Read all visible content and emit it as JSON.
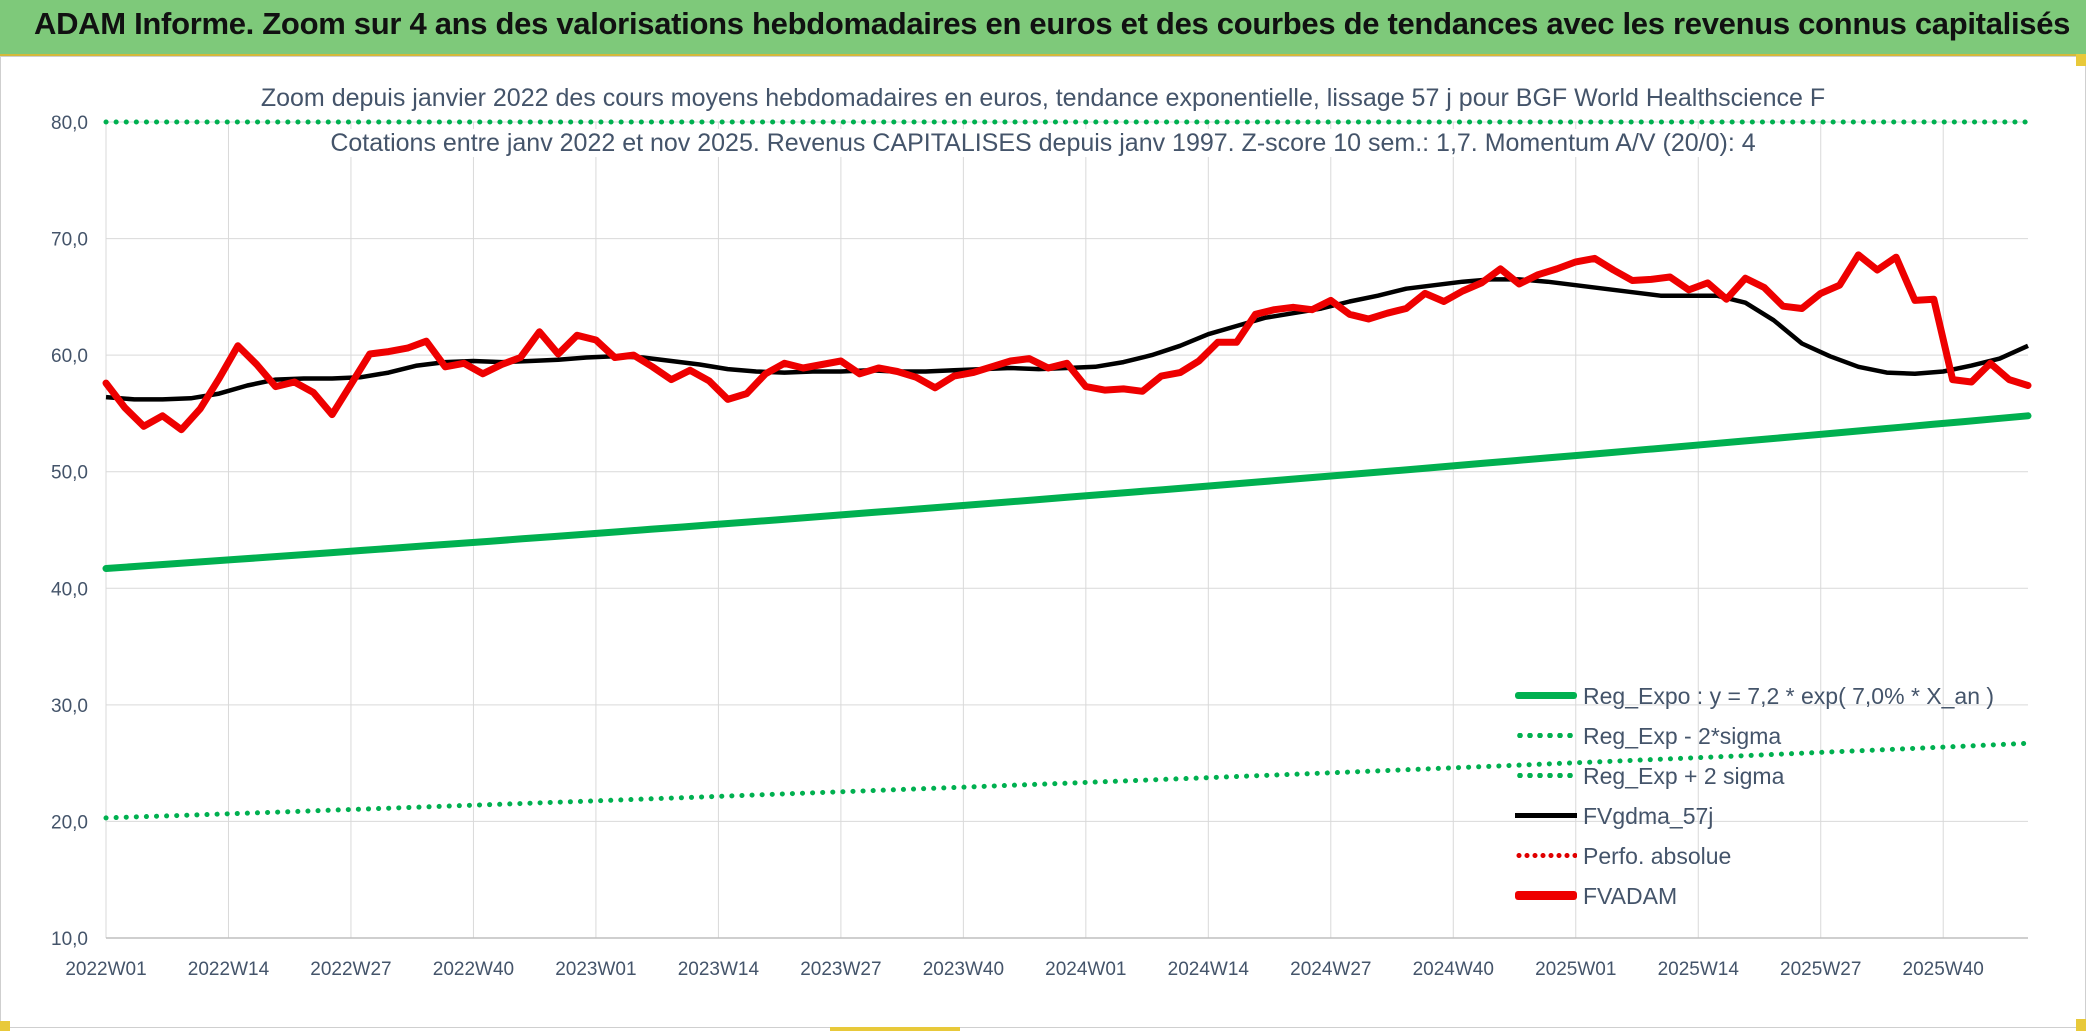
{
  "header": {
    "banner_title": "ADAM Informe. Zoom sur 4 ans des valorisations hebdomadaires en euros et des courbes de tendances avec les revenus connus capitalisés"
  },
  "colors": {
    "banner": "#7ec97a",
    "reg_expo": "#00b050",
    "fvgdma": "#000000",
    "fvadam": "#ee0000",
    "perfo": "#e00000",
    "grid": "#d9d9d9",
    "text": "#44546a"
  },
  "chart_data": {
    "type": "line",
    "title": "Zoom depuis janvier 2022 des cours moyens hebdomadaires en euros, tendance exponentielle, lissage 57 j pour BGF World Healthscience F",
    "subtitle": "Cotations entre janv 2022 et nov 2025. Revenus CAPITALISES depuis janv 1997. Z-score 10 sem.: 1,7. Momentum A/V (20/0): 4",
    "x_tick_labels": [
      "2022W01",
      "2022W14",
      "2022W27",
      "2022W40",
      "2023W01",
      "2023W14",
      "2023W27",
      "2023W40",
      "2024W01",
      "2024W14",
      "2024W27",
      "2024W40",
      "2025W01",
      "2025W14",
      "2025W27",
      "2025W40"
    ],
    "y_tick_labels": [
      "10,0",
      "20,0",
      "30,0",
      "40,0",
      "50,0",
      "60,0",
      "70,0",
      "80,0"
    ],
    "ylim": [
      10,
      80
    ],
    "x_range_weeks": [
      0,
      204
    ],
    "grid": true,
    "legend_position": "bottom-right",
    "series": [
      {
        "name": "Reg_Expo : y = 7,2 * exp( 7,0% *  X_an )",
        "style": "solid-green",
        "x_weeks": [
          0,
          204
        ],
        "values": [
          41.7,
          54.8
        ]
      },
      {
        "name": "Reg_Exp - 2*sigma",
        "style": "dotted-green",
        "x_weeks": [
          0,
          204
        ],
        "values": [
          20.3,
          26.7
        ]
      },
      {
        "name": "Reg_Exp + 2 sigma",
        "style": "dotted-green",
        "x_weeks": [
          0,
          204
        ],
        "values": [
          80.0,
          80.0
        ]
      },
      {
        "name": "FVgdma_57j",
        "style": "solid-black",
        "x_weeks": [
          0,
          3,
          6,
          9,
          12,
          15,
          18,
          21,
          24,
          27,
          30,
          33,
          36,
          39,
          42,
          45,
          48,
          51,
          54,
          57,
          60,
          63,
          66,
          69,
          72,
          75,
          78,
          81,
          84,
          87,
          90,
          93,
          96,
          99,
          102,
          105,
          108,
          111,
          114,
          117,
          120,
          123,
          126,
          129,
          132,
          135,
          138,
          141,
          144,
          147,
          150,
          153,
          156,
          159,
          162,
          165,
          168,
          171,
          174,
          177,
          180,
          183,
          186,
          189,
          192,
          195,
          198,
          201,
          204
        ],
        "values": [
          56.4,
          56.2,
          56.2,
          56.3,
          56.7,
          57.4,
          57.9,
          58.0,
          58.0,
          58.1,
          58.5,
          59.1,
          59.4,
          59.5,
          59.4,
          59.5,
          59.6,
          59.8,
          59.9,
          59.8,
          59.5,
          59.2,
          58.8,
          58.6,
          58.5,
          58.6,
          58.6,
          58.7,
          58.6,
          58.6,
          58.7,
          58.8,
          58.9,
          58.8,
          58.9,
          59.0,
          59.4,
          60.0,
          60.8,
          61.8,
          62.5,
          63.2,
          63.6,
          64.0,
          64.6,
          65.1,
          65.7,
          66.0,
          66.3,
          66.5,
          66.5,
          66.3,
          66.0,
          65.7,
          65.4,
          65.1,
          65.1,
          65.1,
          64.5,
          63.0,
          61.0,
          59.9,
          59.0,
          58.5,
          58.4,
          58.6,
          59.1,
          59.7,
          60.8
        ]
      },
      {
        "name": "Perfo. absolue",
        "style": "dotted-red",
        "x_weeks": [],
        "values": []
      },
      {
        "name": "FVADAM",
        "style": "solid-red",
        "x_weeks": [
          0,
          2,
          4,
          6,
          8,
          10,
          12,
          14,
          16,
          18,
          20,
          22,
          24,
          26,
          28,
          30,
          32,
          34,
          36,
          38,
          40,
          42,
          44,
          46,
          48,
          50,
          52,
          54,
          56,
          58,
          60,
          62,
          64,
          66,
          68,
          70,
          72,
          74,
          76,
          78,
          80,
          82,
          84,
          86,
          88,
          90,
          92,
          94,
          96,
          98,
          100,
          102,
          104,
          106,
          108,
          110,
          112,
          114,
          116,
          118,
          120,
          122,
          124,
          126,
          128,
          130,
          132,
          134,
          136,
          138,
          140,
          142,
          144,
          146,
          148,
          150,
          152,
          154,
          156,
          158,
          160,
          162,
          164,
          166,
          168,
          170,
          172,
          174,
          176,
          178,
          180,
          182,
          184,
          186,
          188,
          190,
          192,
          194,
          196,
          198,
          200,
          202,
          204
        ],
        "values": [
          57.6,
          55.5,
          53.9,
          54.8,
          53.6,
          55.4,
          58.0,
          60.8,
          59.2,
          57.3,
          57.7,
          56.8,
          54.9,
          57.5,
          60.1,
          60.3,
          60.6,
          61.2,
          59.0,
          59.3,
          58.4,
          59.2,
          59.8,
          62.0,
          60.1,
          61.7,
          61.3,
          59.8,
          60.0,
          59.0,
          57.9,
          58.7,
          57.8,
          56.2,
          56.7,
          58.4,
          59.3,
          58.9,
          59.2,
          59.5,
          58.4,
          58.9,
          58.6,
          58.1,
          57.2,
          58.2,
          58.5,
          59.0,
          59.5,
          59.7,
          58.9,
          59.3,
          57.3,
          57.0,
          57.1,
          56.9,
          58.2,
          58.5,
          59.5,
          61.1,
          61.1,
          63.5,
          63.9,
          64.1,
          63.9,
          64.7,
          63.5,
          63.1,
          63.6,
          64.0,
          65.3,
          64.6,
          65.5,
          66.2,
          67.4,
          66.1,
          66.9,
          67.4,
          68.0,
          68.3,
          67.3,
          66.4,
          66.5,
          66.7,
          65.6,
          66.2,
          64.8,
          66.6,
          65.8,
          64.2,
          64.0,
          65.3,
          66.0,
          68.6,
          67.3,
          68.4,
          64.7,
          64.8,
          57.9,
          57.7,
          59.3,
          57.9,
          57.4
        ]
      }
    ]
  }
}
